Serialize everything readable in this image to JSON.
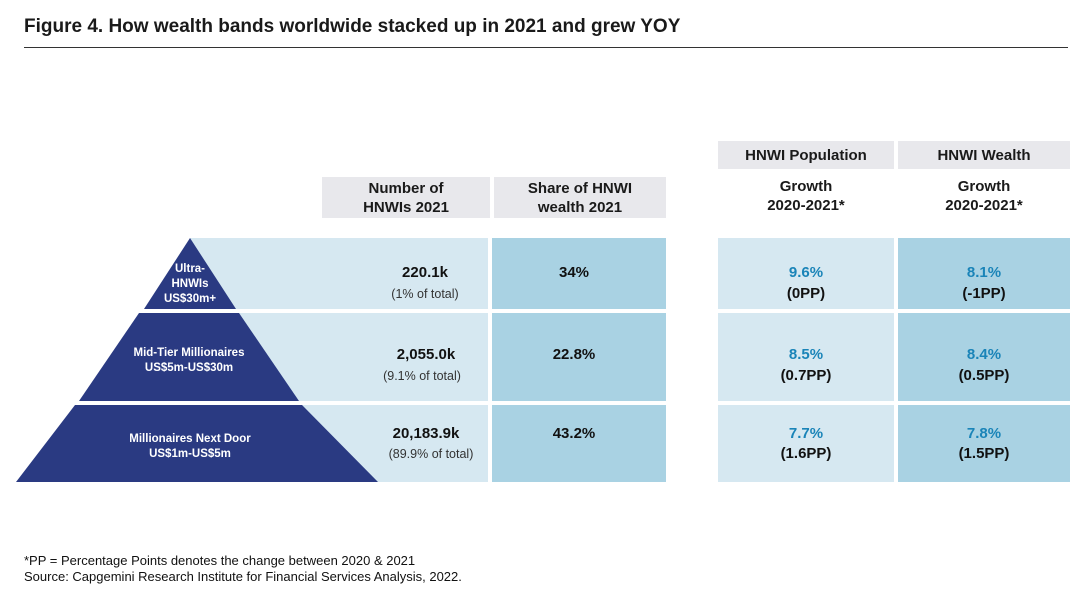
{
  "title": "Figure 4. How wealth bands worldwide stacked up in 2021 and grew YOY",
  "headers": {
    "number": "Number of\nHNWIs 2021",
    "share": "Share of HNWI\nwealth 2021",
    "pop_top": "HNWI Population",
    "pop_sub": "Growth\n2020-2021*",
    "wealth_top": "HNWI Wealth",
    "wealth_sub": "Growth\n2020-2021*"
  },
  "colors": {
    "pyramid": "#2a3a82",
    "light_cell": "#d6e8f1",
    "mid_cell": "#a9d2e3",
    "growth_text": "#1a84b8"
  },
  "chart_data": {
    "type": "table",
    "rows": [
      {
        "tier": "Ultra-\nHNWIs\nUS$30m+",
        "number": "220.1k",
        "number_share": "(1% of total)",
        "wealth_share": "34%",
        "pop_growth": "9.6%",
        "pop_growth_pp": "(0PP)",
        "wealth_growth": "8.1%",
        "wealth_growth_pp": "(-1PP)"
      },
      {
        "tier": "Mid-Tier Millionaires\nUS$5m-US$30m",
        "number": "2,055.0k",
        "number_share": "(9.1% of total)",
        "wealth_share": "22.8%",
        "pop_growth": "8.5%",
        "pop_growth_pp": "(0.7PP)",
        "wealth_growth": "8.4%",
        "wealth_growth_pp": "(0.5PP)"
      },
      {
        "tier": "Millionaires Next Door\nUS$1m-US$5m",
        "number": "20,183.9k",
        "number_share": "(89.9% of total)",
        "wealth_share": "43.2%",
        "pop_growth": "7.7%",
        "pop_growth_pp": "(1.6PP)",
        "wealth_growth": "7.8%",
        "wealth_growth_pp": "(1.5PP)"
      }
    ]
  },
  "footnote": {
    "line1": "*PP = Percentage Points denotes the change between 2020 & 2021",
    "line2": "Source: Capgemini Research Institute for Financial Services Analysis, 2022."
  }
}
